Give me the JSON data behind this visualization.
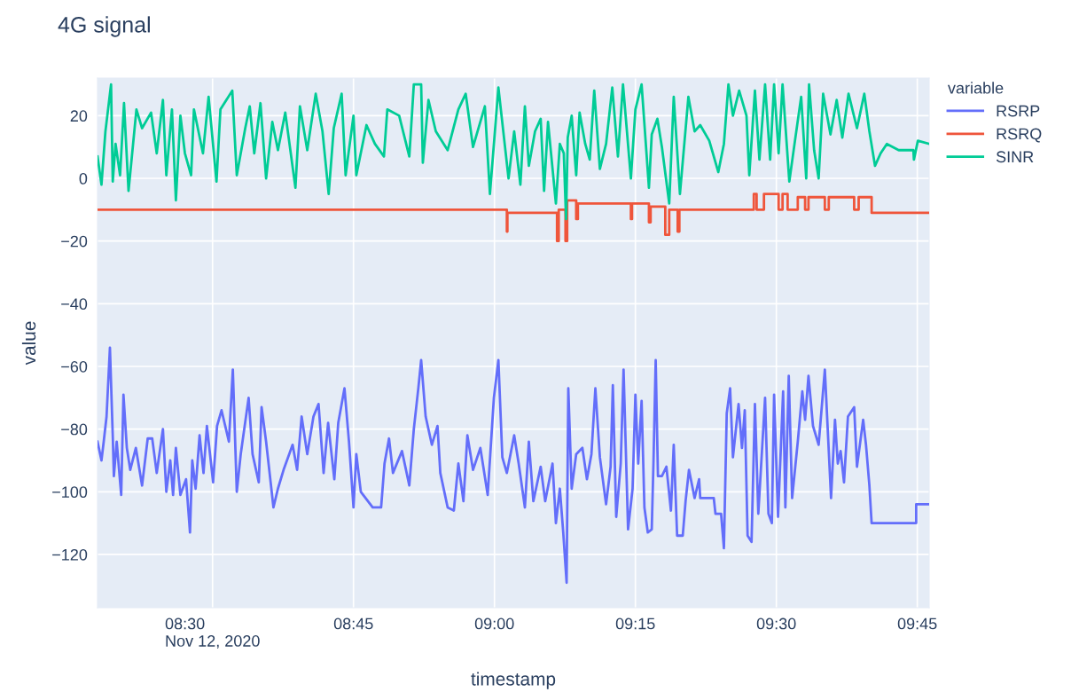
{
  "chart_data": {
    "type": "line",
    "title": "4G signal",
    "xlabel": "timestamp",
    "ylabel": "value",
    "legend_title": "variable",
    "xlim": [
      8.296,
      9.771
    ],
    "ylim": [
      -137,
      32
    ],
    "xticks": [
      {
        "value": 8.5,
        "label": "08:30\nNov 12, 2020"
      },
      {
        "value": 8.75,
        "label": "08:45"
      },
      {
        "value": 9.0,
        "label": "09:00"
      },
      {
        "value": 9.25,
        "label": "09:15"
      },
      {
        "value": 9.5,
        "label": "09:30"
      },
      {
        "value": 9.75,
        "label": "09:45"
      }
    ],
    "yticks": [
      {
        "value": -120,
        "label": "−120"
      },
      {
        "value": -100,
        "label": "−100"
      },
      {
        "value": -80,
        "label": "−80"
      },
      {
        "value": -60,
        "label": "−60"
      },
      {
        "value": -40,
        "label": "−40"
      },
      {
        "value": -20,
        "label": "−20"
      },
      0,
      20
    ],
    "grid": true,
    "legend": "right",
    "series": [
      {
        "name": "RSRP",
        "color": "#636efa",
        "x": [
          8.296,
          8.303,
          8.307,
          8.312,
          8.318,
          8.323,
          8.325,
          8.33,
          8.338,
          8.342,
          8.348,
          8.354,
          8.364,
          8.375,
          8.385,
          8.393,
          8.401,
          8.412,
          8.418,
          8.425,
          8.43,
          8.435,
          8.443,
          8.453,
          8.46,
          8.464,
          8.47,
          8.477,
          8.484,
          8.49,
          8.501,
          8.508,
          8.516,
          8.529,
          8.536,
          8.543,
          8.55,
          8.564,
          8.571,
          8.582,
          8.587,
          8.595,
          8.608,
          8.616,
          8.626,
          8.642,
          8.65,
          8.658,
          8.668,
          8.679,
          8.688,
          8.697,
          8.705,
          8.716,
          8.723,
          8.734,
          8.742,
          8.75,
          8.755,
          8.763,
          8.784,
          8.799,
          8.805,
          8.813,
          8.82,
          8.836,
          8.849,
          8.857,
          8.865,
          8.87,
          8.878,
          8.889,
          8.899,
          8.904,
          8.917,
          8.928,
          8.936,
          8.945,
          8.952,
          8.962,
          8.975,
          8.988,
          8.999,
          9.007,
          9.014,
          9.022,
          9.035,
          9.043,
          9.054,
          9.061,
          9.069,
          9.082,
          9.09,
          9.103,
          9.109,
          9.116,
          9.122,
          9.128,
          9.131,
          9.137,
          9.145,
          9.156,
          9.164,
          9.172,
          9.179,
          9.187,
          9.198,
          9.206,
          9.21,
          9.216,
          9.224,
          9.229,
          9.237,
          9.245,
          9.25,
          9.255,
          9.261,
          9.266,
          9.272,
          9.279,
          9.282,
          9.286,
          9.29,
          9.297,
          9.305,
          9.313,
          9.318,
          9.324,
          9.334,
          9.339,
          9.345,
          9.355,
          9.363,
          9.365,
          9.389,
          9.392,
          9.402,
          9.407,
          9.412,
          9.418,
          9.423,
          9.433,
          9.439,
          9.444,
          9.449,
          9.456,
          9.462,
          9.468,
          9.48,
          9.486,
          9.492,
          9.496,
          9.503,
          9.512,
          9.516,
          9.522,
          9.528,
          9.538,
          9.546,
          9.551,
          9.557,
          9.565,
          9.575,
          9.586,
          9.597,
          9.604,
          9.609,
          9.614,
          9.62,
          9.627,
          9.638,
          9.643,
          9.654,
          9.659,
          9.665,
          9.669,
          9.748,
          9.748,
          9.771
        ],
        "values": [
          -84,
          -90,
          -84,
          -76,
          -54,
          -82,
          -95,
          -84,
          -101,
          -69,
          -86,
          -93,
          -86,
          -98,
          -83,
          -83,
          -94,
          -80,
          -100,
          -90,
          -101,
          -86,
          -101,
          -96,
          -113,
          -90,
          -99,
          -82,
          -94,
          -79,
          -97,
          -79,
          -74,
          -84,
          -61,
          -100,
          -88,
          -70,
          -88,
          -97,
          -73,
          -84,
          -105,
          -99,
          -93,
          -85,
          -93,
          -76,
          -88,
          -76,
          -72,
          -94,
          -78,
          -96,
          -78,
          -67,
          -84,
          -105,
          -88,
          -100,
          -105,
          -105,
          -91,
          -83,
          -94,
          -87,
          -98,
          -80,
          -67,
          -58,
          -76,
          -85,
          -79,
          -94,
          -105,
          -106,
          -91,
          -103,
          -82,
          -93,
          -86,
          -101,
          -70,
          -58,
          -89,
          -94,
          -82,
          -91,
          -105,
          -84,
          -103,
          -92,
          -103,
          -91,
          -110,
          -99,
          -113,
          -129,
          -67,
          -99,
          -88,
          -86,
          -96,
          -88,
          -67,
          -89,
          -104,
          -92,
          -66,
          -108,
          -91,
          -61,
          -112,
          -99,
          -69,
          -91,
          -71,
          -105,
          -113,
          -112,
          -91,
          -58,
          -95,
          -95,
          -92,
          -106,
          -85,
          -114,
          -114,
          -103,
          -93,
          -102,
          -96,
          -102,
          -102,
          -107,
          -107,
          -118,
          -75,
          -67,
          -89,
          -72,
          -86,
          -74,
          -114,
          -116,
          -72,
          -107,
          -70,
          -107,
          -110,
          -69,
          -108,
          -68,
          -105,
          -63,
          -102,
          -84,
          -68,
          -77,
          -63,
          -79,
          -85,
          -61,
          -102,
          -77,
          -91,
          -87,
          -97,
          -76,
          -73,
          -92,
          -77,
          -85,
          -98,
          -110,
          -110,
          -104,
          -104
        ]
      },
      {
        "name": "RSRQ",
        "color": "#ef553b",
        "x": [
          8.296,
          9.022,
          9.022,
          9.023,
          9.023,
          9.111,
          9.111,
          9.114,
          9.114,
          9.126,
          9.126,
          9.129,
          9.129,
          9.145,
          9.145,
          9.148,
          9.148,
          9.242,
          9.242,
          9.244,
          9.244,
          9.274,
          9.274,
          9.277,
          9.277,
          9.303,
          9.303,
          9.31,
          9.31,
          9.325,
          9.325,
          9.328,
          9.328,
          9.46,
          9.46,
          9.465,
          9.465,
          9.478,
          9.478,
          9.504,
          9.504,
          9.511,
          9.511,
          9.52,
          9.52,
          9.538,
          9.538,
          9.551,
          9.551,
          9.557,
          9.557,
          9.586,
          9.586,
          9.593,
          9.593,
          9.638,
          9.638,
          9.646,
          9.646,
          9.669,
          9.669,
          9.771
        ],
        "values": [
          -10,
          -10,
          -17,
          -17,
          -11,
          -11,
          -20,
          -20,
          -10,
          -10,
          -20,
          -20,
          -7,
          -7,
          -13,
          -13,
          -8,
          -8,
          -13,
          -13,
          -8,
          -8,
          -14,
          -14,
          -9,
          -9,
          -18,
          -18,
          -10,
          -10,
          -17,
          -17,
          -10,
          -10,
          -5,
          -5,
          -10,
          -10,
          -5,
          -5,
          -10,
          -10,
          -5,
          -5,
          -10,
          -10,
          -6,
          -6,
          -10,
          -10,
          -6,
          -6,
          -10,
          -10,
          -6,
          -6,
          -10,
          -10,
          -6,
          -6,
          -11,
          -11
        ]
      },
      {
        "name": "SINR",
        "color": "#00cc96",
        "x": [
          8.296,
          8.303,
          8.31,
          8.32,
          8.323,
          8.328,
          8.336,
          8.343,
          8.351,
          8.365,
          8.375,
          8.391,
          8.401,
          8.412,
          8.418,
          8.428,
          8.435,
          8.443,
          8.451,
          8.462,
          8.467,
          8.483,
          8.493,
          8.507,
          8.514,
          8.535,
          8.543,
          8.558,
          8.566,
          8.574,
          8.585,
          8.595,
          8.606,
          8.616,
          8.629,
          8.647,
          8.655,
          8.668,
          8.683,
          8.695,
          8.706,
          8.715,
          8.729,
          8.736,
          8.75,
          8.755,
          8.773,
          8.788,
          8.804,
          8.81,
          8.831,
          8.849,
          8.857,
          8.87,
          8.873,
          8.883,
          8.896,
          8.917,
          8.936,
          8.949,
          8.962,
          8.983,
          8.992,
          9.007,
          9.025,
          9.035,
          9.046,
          9.054,
          9.061,
          9.072,
          9.082,
          9.088,
          9.095,
          9.109,
          9.116,
          9.123,
          9.127,
          9.13,
          9.137,
          9.145,
          9.151,
          9.161,
          9.169,
          9.177,
          9.187,
          9.198,
          9.209,
          9.219,
          9.228,
          9.242,
          9.25,
          9.261,
          9.274,
          9.279,
          9.289,
          9.297,
          9.31,
          9.318,
          9.329,
          9.344,
          9.355,
          9.365,
          9.381,
          9.397,
          9.407,
          9.415,
          9.423,
          9.434,
          9.447,
          9.452,
          9.462,
          9.47,
          9.48,
          9.489,
          9.496,
          9.504,
          9.511,
          9.523,
          9.533,
          9.544,
          9.553,
          9.558,
          9.567,
          9.575,
          9.583,
          9.596,
          9.607,
          9.617,
          9.628,
          9.643,
          9.656,
          9.665,
          9.675,
          9.685,
          9.696,
          9.717,
          9.743,
          9.744,
          9.751,
          9.771
        ],
        "values": [
          7,
          -2,
          15,
          30,
          -1,
          11,
          1,
          24,
          -4,
          22,
          16,
          21,
          8,
          25,
          1,
          22,
          -7,
          20,
          8,
          1,
          22,
          8,
          26,
          -1,
          22,
          28,
          1,
          16,
          23,
          8,
          24,
          0,
          18,
          9,
          21,
          -3,
          23,
          9,
          27,
          15,
          -5,
          16,
          27,
          1,
          20,
          1,
          17,
          11,
          7,
          22,
          20,
          7,
          30,
          30,
          5,
          25,
          15,
          9,
          22,
          27,
          10,
          23,
          -5,
          29,
          0,
          15,
          -2,
          23,
          4,
          15,
          19,
          -4,
          18,
          -8,
          11,
          8,
          -13,
          13,
          20,
          1,
          21,
          11,
          6,
          28,
          3,
          11,
          29,
          7,
          30,
          0,
          22,
          30,
          -3,
          14,
          19,
          10,
          -8,
          26,
          -5,
          26,
          15,
          17,
          12,
          2,
          11,
          30,
          20,
          28,
          20,
          1,
          28,
          6,
          30,
          6,
          30,
          8,
          30,
          -1,
          12,
          26,
          0,
          30,
          9,
          0,
          27,
          14,
          25,
          13,
          27,
          16,
          27,
          15,
          4,
          8,
          11,
          9,
          9,
          6,
          12,
          11
        ]
      }
    ]
  }
}
